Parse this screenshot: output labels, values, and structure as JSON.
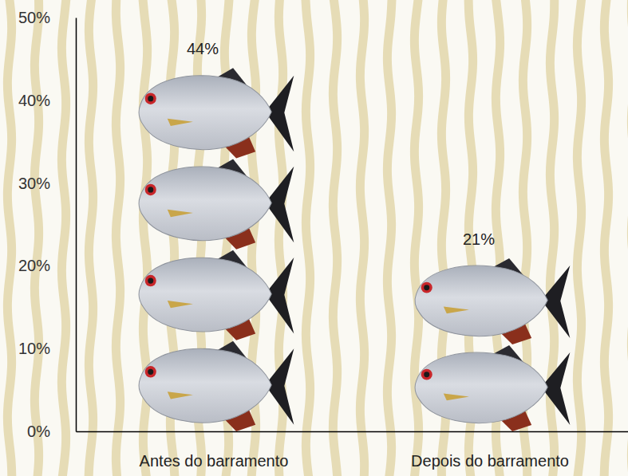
{
  "chart_data": {
    "type": "bar",
    "categories": [
      "Antes do barramento",
      "Depois do barramento"
    ],
    "values": [
      44,
      21
    ],
    "value_labels": [
      "44%",
      "21%"
    ],
    "data_labels": true,
    "marker": "fish",
    "grid": false,
    "ylim": [
      0,
      50
    ],
    "yticks": [
      {
        "value": 0,
        "label": "0%"
      },
      {
        "value": 10,
        "label": "10%"
      },
      {
        "value": 20,
        "label": "20%"
      },
      {
        "value": 30,
        "label": "30%"
      },
      {
        "value": 40,
        "label": "40%"
      },
      {
        "value": 50,
        "label": "50%"
      }
    ]
  }
}
